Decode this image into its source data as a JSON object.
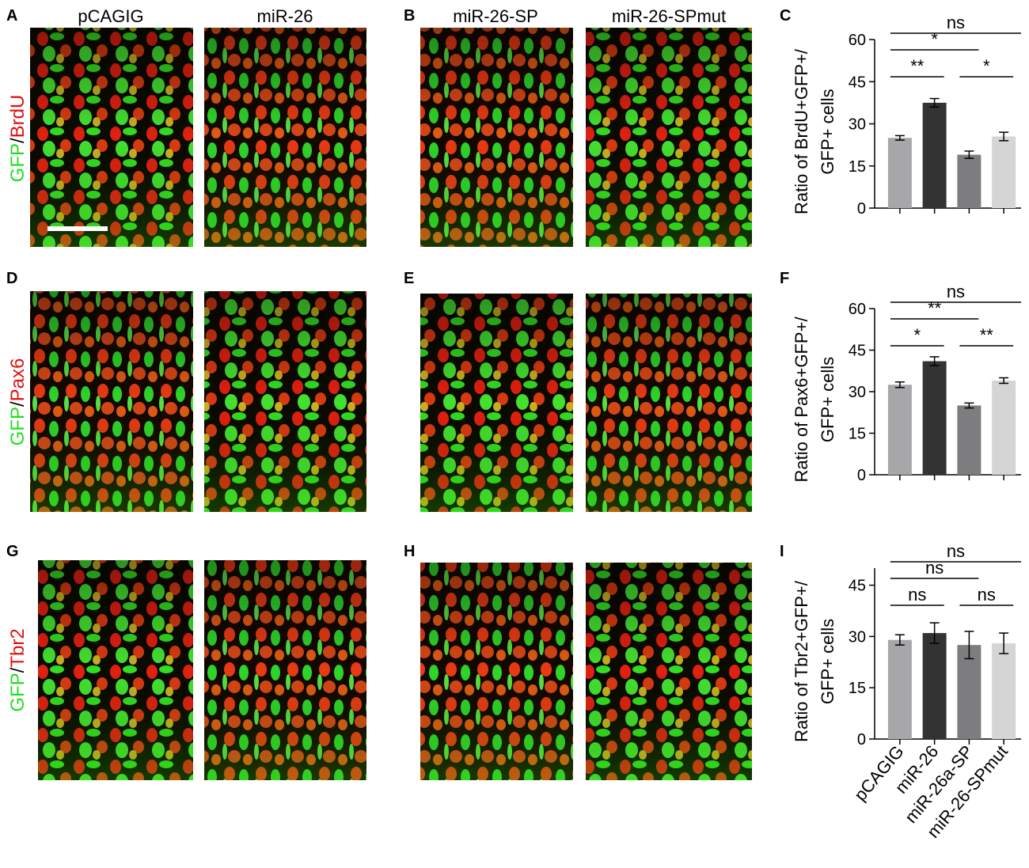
{
  "panel_labels": [
    "A",
    "B",
    "C",
    "D",
    "E",
    "F",
    "G",
    "H",
    "I"
  ],
  "column_headers": [
    "pCAGIG",
    "miR-26",
    "miR-26-SP",
    "miR-26-SPmut"
  ],
  "stain_labels": [
    {
      "green": "GFP",
      "sep": "/",
      "red": "BrdU"
    },
    {
      "green": "GFP",
      "sep": "/",
      "red": "Pax6"
    },
    {
      "green": "GFP",
      "sep": "/",
      "red": "Tbr2"
    }
  ],
  "chart_data": [
    {
      "type": "bar",
      "ylabel": [
        "Ratio of BrdU+GFP+/",
        "GFP+ cells"
      ],
      "categories": [
        null,
        null,
        null,
        null
      ],
      "values": [
        25,
        37.5,
        19,
        25.5
      ],
      "errors": [
        0.8,
        1.5,
        1.3,
        1.5
      ],
      "colors": [
        "#a7a7a9",
        "#333333",
        "#7d7d7f",
        "#d5d5d5"
      ],
      "ylim": [
        0,
        60
      ],
      "yticks": [
        0,
        15,
        30,
        45,
        60
      ],
      "annotations": [
        {
          "label": "ns",
          "from": 0,
          "to": 3
        },
        {
          "label": "*",
          "from": 0,
          "to": 2
        },
        {
          "label": "**",
          "from": 0,
          "to": 1
        },
        {
          "label": "*",
          "from": 2,
          "to": 3
        }
      ]
    },
    {
      "type": "bar",
      "ylabel": [
        "Ratio of Pax6+GFP+/",
        "GFP+ cells"
      ],
      "categories": [
        null,
        null,
        null,
        null
      ],
      "values": [
        32.5,
        41,
        25,
        34
      ],
      "errors": [
        1,
        1.6,
        0.9,
        1
      ],
      "colors": [
        "#a7a7a9",
        "#333333",
        "#7d7d7f",
        "#d5d5d5"
      ],
      "ylim": [
        0,
        60
      ],
      "yticks": [
        0,
        15,
        30,
        45,
        60
      ],
      "annotations": [
        {
          "label": "ns",
          "from": 0,
          "to": 3
        },
        {
          "label": "**",
          "from": 0,
          "to": 2
        },
        {
          "label": "*",
          "from": 0,
          "to": 1
        },
        {
          "label": "**",
          "from": 2,
          "to": 3
        }
      ]
    },
    {
      "type": "bar",
      "ylabel": [
        "Ratio of Tbr2+GFP+/",
        "GFP+ cells"
      ],
      "categories": [
        "pCAGIG",
        "miR-26",
        "miR-26a-SP",
        "miR-26-SPmut"
      ],
      "values": [
        29,
        31,
        27.5,
        28
      ],
      "errors": [
        1.5,
        3,
        4,
        3
      ],
      "colors": [
        "#a7a7a9",
        "#333333",
        "#7d7d7f",
        "#d5d5d5"
      ],
      "ylim": [
        0,
        50
      ],
      "yticks": [
        0,
        15,
        30,
        45
      ],
      "annotations": [
        {
          "label": "ns",
          "from": 0,
          "to": 3
        },
        {
          "label": "ns",
          "from": 0,
          "to": 2
        },
        {
          "label": "ns",
          "from": 0,
          "to": 1
        },
        {
          "label": "ns",
          "from": 2,
          "to": 3
        }
      ]
    }
  ]
}
